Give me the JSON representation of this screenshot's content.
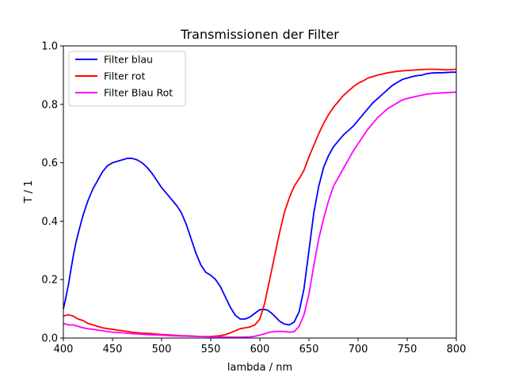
{
  "chart_data": {
    "type": "line",
    "title": "Transmissionen der Filter",
    "xlabel": "lambda / nm",
    "ylabel": "T / 1",
    "xlim": [
      400,
      800
    ],
    "ylim": [
      0,
      1.0
    ],
    "x_ticks": [
      400,
      450,
      500,
      550,
      600,
      650,
      700,
      750,
      800
    ],
    "y_ticks": [
      0.0,
      0.2,
      0.4,
      0.6,
      0.8,
      1.0
    ],
    "x_tick_labels": [
      "400",
      "450",
      "500",
      "550",
      "600",
      "650",
      "700",
      "750",
      "800"
    ],
    "y_tick_labels": [
      "0.0",
      "0.2",
      "0.4",
      "0.6",
      "0.8",
      "1.0"
    ],
    "grid": false,
    "legend_position": "top-left",
    "series": [
      {
        "name": "Filter blau",
        "color": "#0000ff",
        "x": [
          400,
          402,
          405,
          408,
          410,
          413,
          416,
          420,
          425,
          430,
          435,
          440,
          445,
          450,
          455,
          460,
          465,
          470,
          475,
          480,
          485,
          490,
          495,
          500,
          505,
          510,
          515,
          520,
          525,
          530,
          535,
          540,
          545,
          550,
          555,
          560,
          565,
          570,
          575,
          580,
          585,
          590,
          595,
          600,
          605,
          608,
          612,
          616,
          620,
          625,
          630,
          635,
          640,
          645,
          650,
          655,
          660,
          665,
          670,
          675,
          680,
          685,
          690,
          695,
          700,
          705,
          710,
          715,
          720,
          725,
          730,
          735,
          740,
          745,
          750,
          755,
          760,
          765,
          770,
          775,
          780,
          785,
          790,
          795,
          800
        ],
        "y": [
          0.1,
          0.13,
          0.18,
          0.24,
          0.28,
          0.33,
          0.37,
          0.42,
          0.47,
          0.51,
          0.54,
          0.57,
          0.59,
          0.6,
          0.605,
          0.61,
          0.615,
          0.615,
          0.61,
          0.6,
          0.585,
          0.565,
          0.54,
          0.515,
          0.495,
          0.475,
          0.455,
          0.43,
          0.39,
          0.34,
          0.29,
          0.25,
          0.225,
          0.215,
          0.2,
          0.175,
          0.14,
          0.105,
          0.078,
          0.065,
          0.065,
          0.072,
          0.085,
          0.097,
          0.098,
          0.095,
          0.085,
          0.072,
          0.058,
          0.048,
          0.045,
          0.055,
          0.09,
          0.17,
          0.3,
          0.43,
          0.52,
          0.585,
          0.625,
          0.655,
          0.675,
          0.695,
          0.71,
          0.725,
          0.745,
          0.765,
          0.785,
          0.805,
          0.82,
          0.835,
          0.85,
          0.865,
          0.875,
          0.885,
          0.89,
          0.895,
          0.898,
          0.9,
          0.905,
          0.907,
          0.908,
          0.908,
          0.909,
          0.91,
          0.91
        ]
      },
      {
        "name": "Filter rot",
        "color": "#ff0000",
        "x": [
          400,
          405,
          410,
          415,
          420,
          425,
          430,
          435,
          440,
          445,
          450,
          455,
          460,
          470,
          480,
          490,
          500,
          510,
          520,
          530,
          540,
          550,
          560,
          565,
          570,
          575,
          580,
          585,
          590,
          595,
          600,
          605,
          610,
          615,
          620,
          625,
          630,
          635,
          640,
          645,
          650,
          655,
          660,
          665,
          670,
          675,
          680,
          685,
          690,
          695,
          700,
          705,
          710,
          715,
          720,
          730,
          740,
          750,
          760,
          770,
          780,
          790,
          800
        ],
        "y": [
          0.075,
          0.08,
          0.075,
          0.065,
          0.06,
          0.05,
          0.045,
          0.04,
          0.035,
          0.032,
          0.03,
          0.027,
          0.025,
          0.02,
          0.017,
          0.015,
          0.012,
          0.01,
          0.008,
          0.007,
          0.005,
          0.005,
          0.008,
          0.012,
          0.018,
          0.025,
          0.032,
          0.035,
          0.038,
          0.045,
          0.065,
          0.12,
          0.2,
          0.28,
          0.36,
          0.43,
          0.48,
          0.52,
          0.545,
          0.575,
          0.62,
          0.66,
          0.7,
          0.735,
          0.765,
          0.79,
          0.81,
          0.83,
          0.845,
          0.86,
          0.872,
          0.88,
          0.89,
          0.895,
          0.9,
          0.908,
          0.913,
          0.916,
          0.918,
          0.92,
          0.92,
          0.918,
          0.92
        ]
      },
      {
        "name": "Filter Blau Rot",
        "color": "#ff00ff",
        "x": [
          400,
          405,
          410,
          415,
          420,
          425,
          430,
          435,
          440,
          445,
          450,
          460,
          470,
          480,
          490,
          500,
          510,
          520,
          530,
          540,
          550,
          560,
          570,
          580,
          590,
          595,
          600,
          605,
          610,
          615,
          620,
          625,
          630,
          635,
          640,
          645,
          650,
          655,
          660,
          665,
          670,
          675,
          680,
          685,
          690,
          695,
          700,
          705,
          710,
          715,
          720,
          725,
          730,
          735,
          740,
          745,
          750,
          760,
          770,
          780,
          790,
          800
        ],
        "y": [
          0.05,
          0.045,
          0.045,
          0.04,
          0.035,
          0.032,
          0.03,
          0.027,
          0.025,
          0.022,
          0.02,
          0.018,
          0.015,
          0.013,
          0.011,
          0.01,
          0.008,
          0.007,
          0.006,
          0.005,
          0.004,
          0.004,
          0.003,
          0.003,
          0.004,
          0.006,
          0.01,
          0.015,
          0.02,
          0.022,
          0.023,
          0.022,
          0.02,
          0.022,
          0.04,
          0.08,
          0.15,
          0.25,
          0.34,
          0.41,
          0.47,
          0.52,
          0.55,
          0.58,
          0.61,
          0.64,
          0.665,
          0.69,
          0.715,
          0.735,
          0.755,
          0.77,
          0.785,
          0.795,
          0.805,
          0.815,
          0.82,
          0.828,
          0.835,
          0.838,
          0.84,
          0.842
        ]
      }
    ]
  }
}
